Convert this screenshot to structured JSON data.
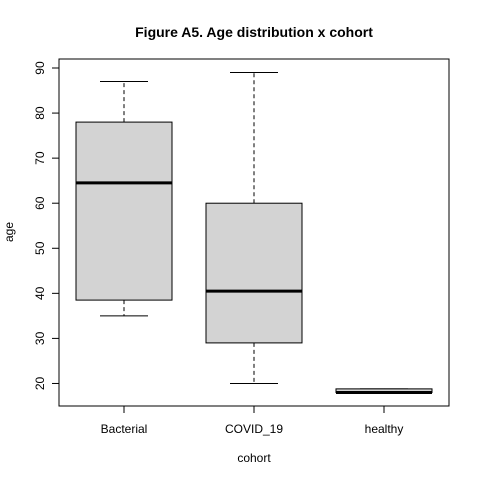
{
  "chart_data": {
    "type": "boxplot",
    "title": "Figure A5. Age distribution x cohort",
    "xlabel": "cohort",
    "ylabel": "age",
    "ylim": [
      15,
      92
    ],
    "yticks": [
      20,
      30,
      40,
      50,
      60,
      70,
      80,
      90
    ],
    "grid": false,
    "legend": "none",
    "box_fill": "#d3d3d3",
    "categories": [
      "Bacterial",
      "COVID_19",
      "healthy"
    ],
    "boxes": [
      {
        "category": "Bacterial",
        "min": 35,
        "q1": 38.5,
        "median": 64.5,
        "q3": 78,
        "max": 87
      },
      {
        "category": "COVID_19",
        "min": 20,
        "q1": 29,
        "median": 40.5,
        "q3": 60,
        "max": 89
      },
      {
        "category": "healthy",
        "min": 18,
        "q1": 18,
        "median": 18,
        "q3": 18.8,
        "max": 18.8
      }
    ]
  }
}
